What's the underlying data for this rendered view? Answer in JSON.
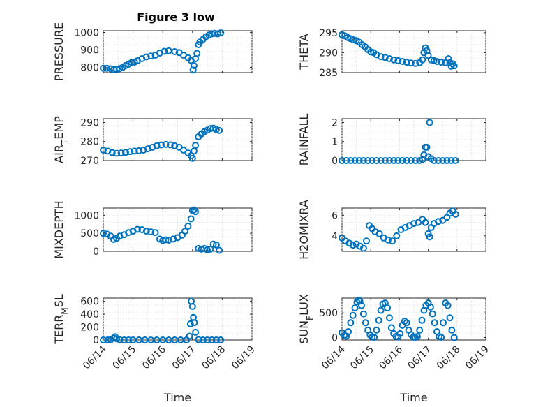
{
  "figure": {
    "title": "Figure 3 low",
    "marker_color": "#0072bd"
  },
  "chart_data": [
    {
      "type": "scatter",
      "panel": "left-1",
      "ylabel": "PRESSURE",
      "title": "Figure 3 low",
      "xlim": [
        0,
        5
      ],
      "ylim": [
        770,
        1010
      ],
      "yticks": [
        800,
        900,
        1000
      ],
      "grid": true,
      "x_ticks": [
        0,
        1,
        2,
        3,
        4,
        5
      ],
      "x_tick_labels": [],
      "x": [
        0.0,
        0.12,
        0.25,
        0.35,
        0.45,
        0.55,
        0.65,
        0.75,
        0.85,
        0.95,
        1.05,
        1.15,
        1.3,
        1.45,
        1.6,
        1.75,
        1.9,
        2.05,
        2.2,
        2.4,
        2.55,
        2.7,
        2.85,
        2.95,
        3.02,
        3.05,
        3.1,
        3.15,
        3.2,
        3.25,
        3.35,
        3.45,
        3.55,
        3.65,
        3.75,
        3.85,
        3.95
      ],
      "y": [
        795,
        795,
        792,
        788,
        790,
        793,
        800,
        810,
        818,
        828,
        830,
        838,
        850,
        860,
        865,
        870,
        882,
        892,
        895,
        890,
        885,
        870,
        855,
        840,
        785,
        810,
        850,
        880,
        930,
        945,
        960,
        975,
        985,
        992,
        995,
        992,
        998
      ]
    },
    {
      "type": "scatter",
      "panel": "right-1",
      "ylabel": "THETA",
      "xlim": [
        0,
        5
      ],
      "ylim": [
        285,
        295.5
      ],
      "yticks": [
        285,
        290,
        295
      ],
      "grid": true,
      "x_ticks": [
        0,
        1,
        2,
        3,
        4,
        5
      ],
      "x_tick_labels": [],
      "x": [
        0.0,
        0.1,
        0.2,
        0.3,
        0.4,
        0.5,
        0.6,
        0.7,
        0.8,
        0.9,
        1.0,
        1.1,
        1.2,
        1.35,
        1.5,
        1.65,
        1.8,
        1.95,
        2.1,
        2.25,
        2.4,
        2.55,
        2.7,
        2.8,
        2.85,
        2.9,
        2.95,
        3.0,
        3.1,
        3.2,
        3.3,
        3.45,
        3.6,
        3.7,
        3.75,
        3.8,
        3.85,
        3.9
      ],
      "y": [
        294.5,
        294.2,
        293.8,
        293.5,
        293.2,
        293.0,
        292.6,
        292.0,
        291.5,
        290.8,
        290.2,
        290.0,
        289.5,
        289.0,
        288.8,
        288.5,
        288.2,
        288.0,
        287.8,
        287.6,
        287.4,
        287.3,
        287.5,
        288.2,
        290.0,
        291.2,
        290.5,
        289.3,
        288.2,
        288.0,
        287.8,
        287.6,
        287.5,
        288.5,
        287.5,
        286.6,
        287.2,
        286.7
      ]
    },
    {
      "type": "scatter",
      "panel": "left-2",
      "ylabel": "AIR_TEMP",
      "xlim": [
        0,
        5
      ],
      "ylim": [
        270,
        292
      ],
      "yticks": [
        270,
        280,
        290
      ],
      "grid": true,
      "x_ticks": [
        0,
        1,
        2,
        3,
        4,
        5
      ],
      "x_tick_labels": [],
      "x": [
        0.0,
        0.15,
        0.3,
        0.45,
        0.6,
        0.75,
        0.9,
        1.05,
        1.2,
        1.35,
        1.5,
        1.65,
        1.8,
        1.95,
        2.1,
        2.25,
        2.4,
        2.55,
        2.7,
        2.85,
        2.95,
        3.0,
        3.05,
        3.1,
        3.2,
        3.3,
        3.4,
        3.5,
        3.6,
        3.7,
        3.8,
        3.9
      ],
      "y": [
        275.5,
        275.0,
        274.2,
        273.8,
        274.0,
        274.3,
        274.7,
        275.0,
        275.2,
        275.5,
        276.2,
        277.0,
        277.8,
        278.2,
        278.5,
        278.3,
        277.8,
        277.0,
        275.5,
        274.0,
        272.5,
        271.2,
        275.0,
        278.0,
        282.5,
        284.0,
        285.2,
        286.0,
        286.8,
        287.0,
        286.3,
        285.8
      ]
    },
    {
      "type": "scatter",
      "panel": "right-2",
      "ylabel": "RAINFALL",
      "xlim": [
        0,
        5
      ],
      "ylim": [
        0,
        2.2
      ],
      "yticks": [
        0,
        1,
        2
      ],
      "grid": true,
      "x_ticks": [
        0,
        1,
        2,
        3,
        4,
        5
      ],
      "x_tick_labels": [],
      "x": [
        0.0,
        0.15,
        0.3,
        0.45,
        0.6,
        0.75,
        0.9,
        1.05,
        1.2,
        1.35,
        1.5,
        1.65,
        1.8,
        1.95,
        2.1,
        2.25,
        2.4,
        2.55,
        2.7,
        2.8,
        2.85,
        2.9,
        2.95,
        3.0,
        3.05,
        3.1,
        3.2,
        3.35,
        3.5,
        3.65,
        3.8,
        3.95
      ],
      "y": [
        0,
        0,
        0,
        0,
        0,
        0,
        0,
        0,
        0,
        0,
        0,
        0,
        0,
        0,
        0,
        0,
        0,
        0,
        0,
        0.05,
        0.3,
        0.7,
        0.7,
        0.2,
        2.0,
        0.1,
        0,
        0,
        0,
        0,
        0,
        0
      ]
    },
    {
      "type": "scatter",
      "panel": "left-3",
      "ylabel": "MIXDEPTH",
      "xlim": [
        0,
        5
      ],
      "ylim": [
        0,
        1200
      ],
      "yticks": [
        0,
        500,
        1000
      ],
      "grid": true,
      "x_ticks": [
        0,
        1,
        2,
        3,
        4,
        5
      ],
      "x_tick_labels": [],
      "x": [
        0.0,
        0.12,
        0.25,
        0.35,
        0.45,
        0.55,
        0.7,
        0.85,
        1.0,
        1.15,
        1.3,
        1.45,
        1.6,
        1.75,
        1.9,
        2.0,
        2.1,
        2.2,
        2.35,
        2.5,
        2.65,
        2.75,
        2.85,
        2.95,
        3.0,
        3.05,
        3.1,
        3.2,
        3.3,
        3.4,
        3.5,
        3.6,
        3.7,
        3.8,
        3.9
      ],
      "y": [
        500,
        480,
        420,
        330,
        360,
        420,
        460,
        520,
        560,
        610,
        600,
        560,
        540,
        520,
        340,
        300,
        320,
        310,
        340,
        380,
        450,
        560,
        700,
        900,
        1130,
        1150,
        1100,
        80,
        60,
        80,
        40,
        60,
        200,
        180,
        30
      ]
    },
    {
      "type": "scatter",
      "panel": "right-3",
      "ylabel": "H2OMIXRA",
      "xlim": [
        0,
        5
      ],
      "ylim": [
        2.5,
        6.7
      ],
      "yticks": [
        4,
        6
      ],
      "grid": true,
      "x_ticks": [
        0,
        1,
        2,
        3,
        4,
        5
      ],
      "x_tick_labels": [],
      "x": [
        0.0,
        0.12,
        0.25,
        0.38,
        0.5,
        0.62,
        0.75,
        0.85,
        0.95,
        1.05,
        1.15,
        1.3,
        1.45,
        1.6,
        1.75,
        1.9,
        2.05,
        2.2,
        2.35,
        2.5,
        2.65,
        2.8,
        2.9,
        3.0,
        3.05,
        3.1,
        3.2,
        3.35,
        3.5,
        3.65,
        3.75,
        3.85,
        3.95
      ],
      "y": [
        3.8,
        3.5,
        3.3,
        3.1,
        3.2,
        3.0,
        2.8,
        3.5,
        5.0,
        4.7,
        4.4,
        4.2,
        3.8,
        3.6,
        3.5,
        4.0,
        4.6,
        4.8,
        5.0,
        5.2,
        5.3,
        5.6,
        5.3,
        4.2,
        3.9,
        4.8,
        5.2,
        5.4,
        5.5,
        5.8,
        6.2,
        6.4,
        6.1
      ]
    },
    {
      "type": "scatter",
      "panel": "left-4",
      "ylabel": "TERR_MSL",
      "xlim": [
        0,
        5
      ],
      "ylim": [
        0,
        650
      ],
      "yticks": [
        0,
        200,
        400,
        600
      ],
      "grid": true,
      "x_ticks": [
        0,
        1,
        2,
        3,
        4,
        5
      ],
      "x_tick_labels": [
        "06/14",
        "06/15",
        "06/16",
        "06/17",
        "06/18",
        "06/19"
      ],
      "xlabel": "Time",
      "x": [
        0.0,
        0.15,
        0.25,
        0.35,
        0.4,
        0.45,
        0.55,
        0.7,
        0.85,
        1.0,
        1.2,
        1.4,
        1.6,
        1.8,
        2.0,
        2.2,
        2.4,
        2.6,
        2.8,
        2.9,
        2.93,
        2.96,
        3.0,
        3.03,
        3.06,
        3.1,
        3.2,
        3.35,
        3.5,
        3.65,
        3.8,
        3.95
      ],
      "y": [
        0,
        0,
        5,
        30,
        50,
        20,
        5,
        0,
        0,
        0,
        0,
        0,
        0,
        0,
        0,
        0,
        0,
        0,
        0,
        60,
        250,
        600,
        520,
        350,
        270,
        120,
        5,
        0,
        0,
        0,
        0,
        0
      ]
    },
    {
      "type": "scatter",
      "panel": "right-4",
      "ylabel": "SUN_FLUX",
      "xlim": [
        0,
        5
      ],
      "ylim": [
        -50,
        800
      ],
      "yticks": [
        0,
        500
      ],
      "grid": true,
      "x_ticks": [
        0,
        1,
        2,
        3,
        4,
        5
      ],
      "x_tick_labels": [
        "06/14",
        "06/15",
        "06/16",
        "06/17",
        "06/18",
        "06/19"
      ],
      "xlabel": "Time",
      "x": [
        0.0,
        0.08,
        0.15,
        0.22,
        0.3,
        0.38,
        0.45,
        0.52,
        0.58,
        0.62,
        0.68,
        0.75,
        0.82,
        0.9,
        0.98,
        1.05,
        1.12,
        1.2,
        1.28,
        1.35,
        1.42,
        1.5,
        1.58,
        1.65,
        1.72,
        1.8,
        1.88,
        1.95,
        2.02,
        2.1,
        2.18,
        2.25,
        2.32,
        2.4,
        2.48,
        2.55,
        2.62,
        2.7,
        2.78,
        2.85,
        2.92,
        3.0,
        3.08,
        3.15,
        3.22,
        3.3,
        3.38,
        3.45,
        3.52,
        3.6,
        3.68,
        3.75,
        3.82,
        3.9
      ],
      "y": [
        100,
        40,
        30,
        120,
        300,
        450,
        600,
        720,
        760,
        740,
        650,
        480,
        300,
        150,
        50,
        10,
        5,
        150,
        350,
        550,
        680,
        700,
        600,
        400,
        200,
        80,
        20,
        10,
        80,
        250,
        330,
        300,
        150,
        60,
        10,
        5,
        20,
        150,
        350,
        550,
        650,
        700,
        620,
        480,
        300,
        120,
        20,
        5,
        300,
        700,
        650,
        400,
        150,
        0
      ]
    }
  ],
  "axes_text": [
    {
      "ylabel_main": "PRESSURE",
      "ylabel_sub": ""
    },
    {
      "ylabel_main": "THETA",
      "ylabel_sub": ""
    },
    {
      "ylabel_main": "AIR",
      "ylabel_sub": "T",
      "ylabel_tail": "EMP"
    },
    {
      "ylabel_main": "RAINFALL",
      "ylabel_sub": ""
    },
    {
      "ylabel_main": "MIXDEPTH",
      "ylabel_sub": ""
    },
    {
      "ylabel_main": "H2OMIXRA",
      "ylabel_sub": ""
    },
    {
      "ylabel_main": "TERR",
      "ylabel_sub": "M",
      "ylabel_tail": "SL"
    },
    {
      "ylabel_main": "SUN",
      "ylabel_sub": "F",
      "ylabel_tail": "LUX"
    }
  ]
}
